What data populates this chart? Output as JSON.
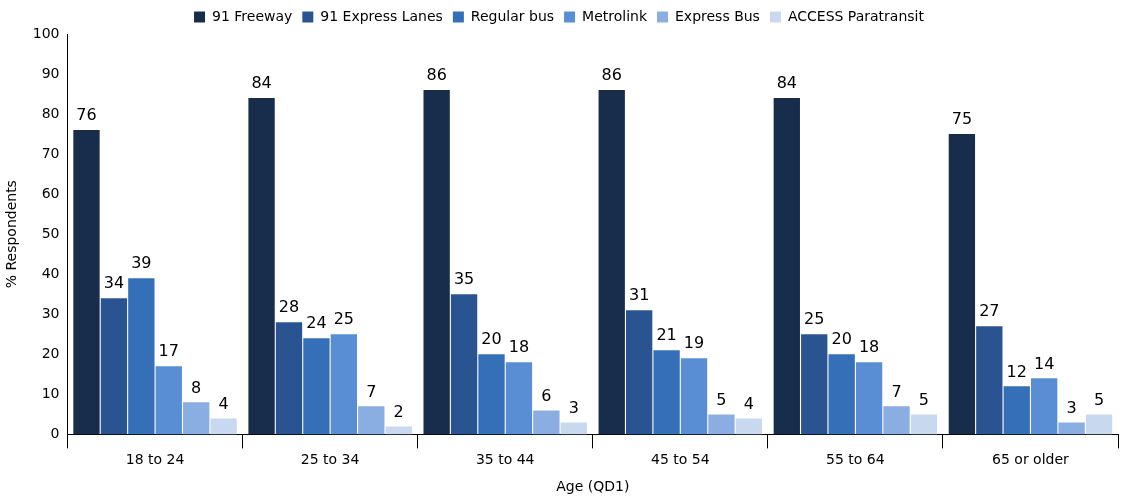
{
  "chart_data": {
    "type": "bar",
    "xlabel": "Age (QD1)",
    "ylabel": "% Respondents",
    "categories": [
      "18 to 24",
      "25 to 34",
      "35 to 44",
      "45 to 54",
      "55 to 64",
      "65 or older"
    ],
    "series": [
      {
        "name": "91 Freeway",
        "color": "#182c4b",
        "values": [
          76,
          84,
          86,
          86,
          84,
          75
        ]
      },
      {
        "name": "91 Express Lanes",
        "color": "#2a5491",
        "values": [
          34,
          28,
          35,
          31,
          25,
          27
        ]
      },
      {
        "name": "Regular bus",
        "color": "#356fb8",
        "values": [
          39,
          24,
          20,
          21,
          20,
          12
        ]
      },
      {
        "name": "Metrolink",
        "color": "#5a8ed4",
        "values": [
          17,
          25,
          18,
          19,
          18,
          14
        ]
      },
      {
        "name": "Express Bus",
        "color": "#8aaee1",
        "values": [
          8,
          7,
          6,
          5,
          7,
          3
        ]
      },
      {
        "name": "ACCESS Paratransit",
        "color": "#c8d8ef",
        "values": [
          4,
          2,
          3,
          4,
          5,
          5
        ]
      }
    ],
    "ylim": [
      0,
      100
    ],
    "yticks": [
      0,
      10,
      20,
      30,
      40,
      50,
      60,
      70,
      80,
      90,
      100
    ],
    "data_labels": true,
    "legend": "top",
    "grid": false
  }
}
